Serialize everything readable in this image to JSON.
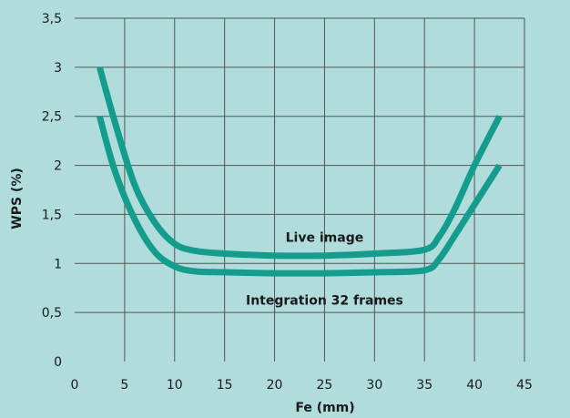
{
  "chart_data": {
    "type": "line",
    "title": "",
    "xlabel": "Fe (mm)",
    "ylabel": "WPS (%)",
    "xlim": [
      0,
      45
    ],
    "ylim": [
      0,
      3.5
    ],
    "grid": true,
    "legend": "none",
    "x_ticks": [
      {
        "value": 0,
        "label": "0"
      },
      {
        "value": 5,
        "label": "5"
      },
      {
        "value": 10,
        "label": "10"
      },
      {
        "value": 15,
        "label": "15"
      },
      {
        "value": 20,
        "label": "20"
      },
      {
        "value": 25,
        "label": "25"
      },
      {
        "value": 30,
        "label": "30"
      },
      {
        "value": 35,
        "label": "35"
      },
      {
        "value": 40,
        "label": "40"
      },
      {
        "value": 45,
        "label": "45"
      }
    ],
    "y_ticks": [
      {
        "value": 0,
        "label": "0"
      },
      {
        "value": 0.5,
        "label": "0,5"
      },
      {
        "value": 1,
        "label": "1"
      },
      {
        "value": 1.5,
        "label": "1,5"
      },
      {
        "value": 2,
        "label": "2"
      },
      {
        "value": 2.5,
        "label": "2,5"
      },
      {
        "value": 3,
        "label": "3"
      },
      {
        "value": 3.5,
        "label": "3,5"
      }
    ],
    "series": [
      {
        "name": "Live image",
        "color": "#149c8c",
        "x": [
          2.5,
          4,
          6,
          8,
          10,
          12,
          15,
          20,
          25,
          30,
          35,
          36.5,
          38,
          40,
          42.5
        ],
        "y": [
          3.0,
          2.45,
          1.8,
          1.42,
          1.2,
          1.13,
          1.1,
          1.08,
          1.08,
          1.1,
          1.14,
          1.28,
          1.55,
          2.0,
          2.5
        ]
      },
      {
        "name": "Integration 32 frames",
        "color": "#149c8c",
        "x": [
          2.5,
          4,
          6,
          8,
          10,
          12,
          15,
          20,
          25,
          30,
          35,
          36.5,
          38,
          40,
          42.5
        ],
        "y": [
          2.5,
          1.95,
          1.45,
          1.12,
          0.97,
          0.92,
          0.91,
          0.9,
          0.9,
          0.91,
          0.93,
          1.05,
          1.28,
          1.6,
          2.0
        ]
      }
    ],
    "annotations": [
      {
        "text": "Live image",
        "x": 25,
        "y": 1.22
      },
      {
        "text": "Integration 32 frames",
        "x": 25,
        "y": 0.58
      }
    ]
  }
}
